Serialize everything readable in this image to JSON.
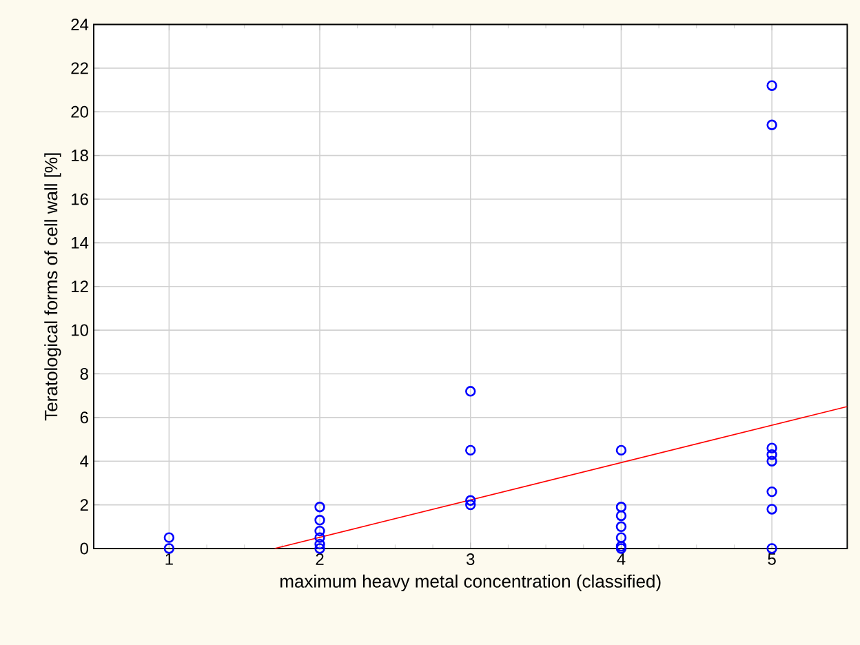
{
  "chart_data": {
    "type": "scatter",
    "xlabel": "maximum heavy metal concentration (classified)",
    "ylabel": "Teratological forms of cell wall [%]",
    "xlim": [
      0.5,
      5.5
    ],
    "ylim": [
      0,
      24
    ],
    "xticks": [
      1,
      2,
      3,
      4,
      5
    ],
    "yticks": [
      0,
      2,
      4,
      6,
      8,
      10,
      12,
      14,
      16,
      18,
      20,
      22,
      24
    ],
    "grid": true,
    "marker": "circle",
    "series": [
      {
        "color": "#0000ff",
        "x": [
          1,
          1,
          2,
          2,
          2,
          2,
          2,
          2,
          3,
          3,
          3,
          3,
          4,
          4,
          4,
          4,
          4,
          4,
          4,
          5,
          5,
          5,
          5,
          5,
          5,
          5,
          5
        ],
        "values": [
          0.5,
          0,
          1.9,
          1.3,
          0.8,
          0.5,
          0.2,
          0,
          7.2,
          4.5,
          2.2,
          2.0,
          4.5,
          1.9,
          1.5,
          1.0,
          0.5,
          0.1,
          0,
          21.2,
          19.4,
          4.6,
          4.3,
          4.0,
          2.6,
          1.8,
          0
        ]
      },
      {
        "type": "line",
        "color": "#ff0000",
        "marker": "none",
        "x": [
          1.7,
          5.5
        ],
        "values": [
          0,
          6.5
        ]
      }
    ]
  }
}
